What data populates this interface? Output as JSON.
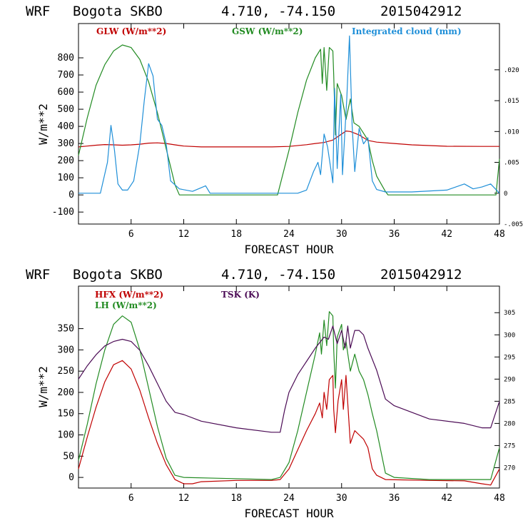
{
  "chart_data": [
    {
      "type": "line",
      "header": {
        "model": "WRF",
        "station": "Bogota SKBO",
        "coords": "4.710, -74.150",
        "init": "2015042912"
      },
      "title": "WRF  Bogota SKBO    4.710, -74.150  2015042912",
      "xlabel": "FORECAST HOUR",
      "ylabel": "W/m**2",
      "xlim": [
        0,
        48
      ],
      "ylim": [
        -170,
        1000
      ],
      "xticks": [
        6,
        12,
        18,
        24,
        30,
        36,
        42,
        48
      ],
      "yticks": [
        -100,
        0,
        100,
        200,
        300,
        400,
        500,
        600,
        700,
        800
      ],
      "right_axis": {
        "ylim": [
          -0.005,
          0.0275
        ],
        "ticks": [
          -0.005,
          0,
          0.005,
          0.01,
          0.015,
          0.02
        ],
        "tick_labels": [
          "-.005",
          "0",
          ".005",
          ".010",
          ".015",
          ".020"
        ]
      },
      "series": [
        {
          "name": "GLW (W/m**2)",
          "color": "#c00000",
          "axis": "left",
          "points": [
            [
              0,
              280
            ],
            [
              1,
              285
            ],
            [
              2,
              290
            ],
            [
              3,
              294
            ],
            [
              4,
              292
            ],
            [
              5,
              290
            ],
            [
              6,
              292
            ],
            [
              7,
              296
            ],
            [
              8,
              302
            ],
            [
              9,
              304
            ],
            [
              10,
              300
            ],
            [
              11,
              292
            ],
            [
              12,
              285
            ],
            [
              14,
              280
            ],
            [
              18,
              280
            ],
            [
              22,
              280
            ],
            [
              24,
              283
            ],
            [
              26,
              293
            ],
            [
              27,
              300
            ],
            [
              28,
              306
            ],
            [
              29,
              320
            ],
            [
              30,
              355
            ],
            [
              30.5,
              373
            ],
            [
              31,
              370
            ],
            [
              32,
              350
            ],
            [
              33,
              318
            ],
            [
              34,
              308
            ],
            [
              36,
              300
            ],
            [
              38,
              292
            ],
            [
              42,
              284
            ],
            [
              46,
              283
            ],
            [
              48,
              283
            ]
          ]
        },
        {
          "name": "GSW (W/m**2)",
          "color": "#228b22",
          "axis": "left",
          "points": [
            [
              0,
              230
            ],
            [
              1,
              450
            ],
            [
              2,
              640
            ],
            [
              3,
              760
            ],
            [
              4,
              840
            ],
            [
              5,
              875
            ],
            [
              6,
              860
            ],
            [
              7,
              790
            ],
            [
              8,
              660
            ],
            [
              9,
              480
            ],
            [
              10,
              270
            ],
            [
              11,
              60
            ],
            [
              11.5,
              0
            ],
            [
              22.7,
              0
            ],
            [
              24,
              260
            ],
            [
              25,
              480
            ],
            [
              26,
              670
            ],
            [
              27,
              800
            ],
            [
              27.6,
              850
            ],
            [
              27.8,
              650
            ],
            [
              28,
              860
            ],
            [
              28.3,
              610
            ],
            [
              28.6,
              860
            ],
            [
              29,
              840
            ],
            [
              29.1,
              700
            ],
            [
              29.3,
              350
            ],
            [
              29.5,
              650
            ],
            [
              30,
              580
            ],
            [
              30.5,
              440
            ],
            [
              31,
              560
            ],
            [
              31.4,
              420
            ],
            [
              32,
              400
            ],
            [
              32.5,
              360
            ],
            [
              33,
              320
            ],
            [
              33.5,
              200
            ],
            [
              34,
              110
            ],
            [
              35,
              20
            ],
            [
              35.3,
              0
            ],
            [
              47.6,
              0
            ],
            [
              48,
              210
            ]
          ]
        },
        {
          "name": "Integrated cloud (mm)",
          "color": "#1f8fd8",
          "axis": "right",
          "points": [
            [
              0,
              0
            ],
            [
              2.5,
              0
            ],
            [
              3.3,
              0.005
            ],
            [
              3.7,
              0.011
            ],
            [
              4.1,
              0.007
            ],
            [
              4.5,
              0.0015
            ],
            [
              5,
              0.0005
            ],
            [
              5.6,
              0.0005
            ],
            [
              6.3,
              0.002
            ],
            [
              7,
              0.008
            ],
            [
              7.5,
              0.015
            ],
            [
              8,
              0.021
            ],
            [
              8.5,
              0.019
            ],
            [
              9,
              0.012
            ],
            [
              9.5,
              0.011
            ],
            [
              10,
              0.008
            ],
            [
              10.5,
              0.002
            ],
            [
              11.5,
              0.0007
            ],
            [
              13,
              0.0003
            ],
            [
              14.5,
              0.0012
            ],
            [
              15,
              0
            ],
            [
              23,
              0
            ],
            [
              25,
              0
            ],
            [
              26,
              0.0005
            ],
            [
              26.8,
              0.0035
            ],
            [
              27.3,
              0.005
            ],
            [
              27.6,
              0.003
            ],
            [
              28,
              0.0096
            ],
            [
              28.4,
              0.0075
            ],
            [
              29,
              0.0017
            ],
            [
              29.2,
              0.017
            ],
            [
              29.5,
              0.004
            ],
            [
              29.9,
              0.016
            ],
            [
              30.1,
              0.003
            ],
            [
              30.6,
              0.0155
            ],
            [
              30.9,
              0.0255
            ],
            [
              31.2,
              0.011
            ],
            [
              31.5,
              0.0035
            ],
            [
              32,
              0.0105
            ],
            [
              32.5,
              0.008
            ],
            [
              33,
              0.009
            ],
            [
              33.5,
              0.002
            ],
            [
              34,
              0.0006
            ],
            [
              35,
              0.0002
            ],
            [
              38,
              0.0002
            ],
            [
              42,
              0.0005
            ],
            [
              44,
              0.0015
            ],
            [
              45,
              0.0007
            ],
            [
              46,
              0.001
            ],
            [
              47,
              0.0015
            ],
            [
              48,
              0
            ]
          ]
        }
      ]
    },
    {
      "type": "line",
      "header": {
        "model": "WRF",
        "station": "Bogota SKBO",
        "coords": "4.710, -74.150",
        "init": "2015042912"
      },
      "title": "WRF  Bogota SKBO    4.710, -74.150  2015042912",
      "xlabel": "FORECAST HOUR",
      "ylabel": "W/m**2",
      "xlim": [
        0,
        48
      ],
      "ylim": [
        -25,
        450
      ],
      "xticks": [
        6,
        12,
        18,
        24,
        30,
        36,
        42,
        48
      ],
      "yticks": [
        0,
        50,
        100,
        150,
        200,
        250,
        300,
        350
      ],
      "right_axis": {
        "ylim": [
          265.4,
          311
        ],
        "ticks": [
          270,
          275,
          280,
          285,
          290,
          295,
          300,
          305
        ],
        "tick_labels": [
          "270",
          "275",
          "280",
          "285",
          "290",
          "295",
          "300",
          "305"
        ]
      },
      "series": [
        {
          "name": "HFX (W/m**2)",
          "color": "#c00000",
          "axis": "left",
          "points": [
            [
              0,
              20
            ],
            [
              1,
              95
            ],
            [
              2,
              165
            ],
            [
              3,
              225
            ],
            [
              4,
              265
            ],
            [
              5,
              275
            ],
            [
              6,
              255
            ],
            [
              7,
              205
            ],
            [
              8,
              140
            ],
            [
              9,
              80
            ],
            [
              10,
              30
            ],
            [
              11,
              -5
            ],
            [
              12,
              -15
            ],
            [
              13,
              -15
            ],
            [
              14,
              -10
            ],
            [
              18,
              -7
            ],
            [
              22,
              -7
            ],
            [
              23,
              -5
            ],
            [
              24,
              20
            ],
            [
              25,
              65
            ],
            [
              26,
              110
            ],
            [
              27,
              150
            ],
            [
              27.5,
              175
            ],
            [
              27.8,
              140
            ],
            [
              28,
              200
            ],
            [
              28.3,
              160
            ],
            [
              28.6,
              230
            ],
            [
              29,
              240
            ],
            [
              29.1,
              160
            ],
            [
              29.3,
              105
            ],
            [
              29.6,
              180
            ],
            [
              30,
              230
            ],
            [
              30.2,
              160
            ],
            [
              30.5,
              240
            ],
            [
              31,
              80
            ],
            [
              31.5,
              110
            ],
            [
              32,
              100
            ],
            [
              32.5,
              90
            ],
            [
              33,
              70
            ],
            [
              33.5,
              20
            ],
            [
              34,
              5
            ],
            [
              35,
              -5
            ],
            [
              40,
              -7
            ],
            [
              44,
              -8
            ],
            [
              46,
              -15
            ],
            [
              47,
              -18
            ],
            [
              48,
              20
            ]
          ]
        },
        {
          "name": "LH  (W/m**2)",
          "color": "#228b22",
          "axis": "left",
          "points": [
            [
              0,
              40
            ],
            [
              1,
              125
            ],
            [
              2,
              220
            ],
            [
              3,
              300
            ],
            [
              4,
              360
            ],
            [
              5,
              380
            ],
            [
              6,
              365
            ],
            [
              7,
              300
            ],
            [
              8,
              210
            ],
            [
              9,
              120
            ],
            [
              10,
              45
            ],
            [
              11,
              5
            ],
            [
              12,
              0
            ],
            [
              16,
              -2
            ],
            [
              22,
              -5
            ],
            [
              23,
              0
            ],
            [
              24,
              35
            ],
            [
              25,
              110
            ],
            [
              26,
              200
            ],
            [
              27,
              290
            ],
            [
              27.5,
              340
            ],
            [
              27.7,
              290
            ],
            [
              28,
              370
            ],
            [
              28.3,
              310
            ],
            [
              28.6,
              390
            ],
            [
              29,
              380
            ],
            [
              29.1,
              300
            ],
            [
              29.3,
              210
            ],
            [
              29.5,
              330
            ],
            [
              30,
              360
            ],
            [
              30.2,
              300
            ],
            [
              30.5,
              320
            ],
            [
              31,
              250
            ],
            [
              31.5,
              290
            ],
            [
              32,
              250
            ],
            [
              32.5,
              230
            ],
            [
              33,
              195
            ],
            [
              33.5,
              150
            ],
            [
              34,
              110
            ],
            [
              35,
              10
            ],
            [
              36,
              0
            ],
            [
              40,
              -5
            ],
            [
              46,
              -5
            ],
            [
              47,
              -5
            ],
            [
              48,
              70
            ]
          ]
        },
        {
          "name": "TSK (K)",
          "color": "#4b0b55",
          "axis": "right",
          "points": [
            [
              0,
              290
            ],
            [
              1,
              293
            ],
            [
              2,
              295.5
            ],
            [
              3,
              297.5
            ],
            [
              4,
              298.5
            ],
            [
              5,
              299
            ],
            [
              6,
              298.5
            ],
            [
              7,
              296.5
            ],
            [
              8,
              293
            ],
            [
              9,
              289
            ],
            [
              10,
              285
            ],
            [
              11,
              282.5
            ],
            [
              12,
              282
            ],
            [
              14,
              280.5
            ],
            [
              18,
              279
            ],
            [
              22,
              278
            ],
            [
              23,
              278
            ],
            [
              23.5,
              283
            ],
            [
              24,
              287
            ],
            [
              25,
              291
            ],
            [
              26,
              294
            ],
            [
              27,
              297
            ],
            [
              28,
              299.5
            ],
            [
              28.5,
              299
            ],
            [
              29,
              302
            ],
            [
              29.5,
              298
            ],
            [
              30,
              301
            ],
            [
              30.4,
              297
            ],
            [
              30.7,
              302
            ],
            [
              31,
              297
            ],
            [
              31.5,
              301
            ],
            [
              32,
              301
            ],
            [
              32.5,
              300
            ],
            [
              33,
              297
            ],
            [
              34,
              292
            ],
            [
              35,
              285.5
            ],
            [
              36,
              284
            ],
            [
              40,
              281
            ],
            [
              44,
              280
            ],
            [
              46,
              279
            ],
            [
              47,
              279
            ],
            [
              48,
              285
            ]
          ]
        }
      ]
    }
  ]
}
